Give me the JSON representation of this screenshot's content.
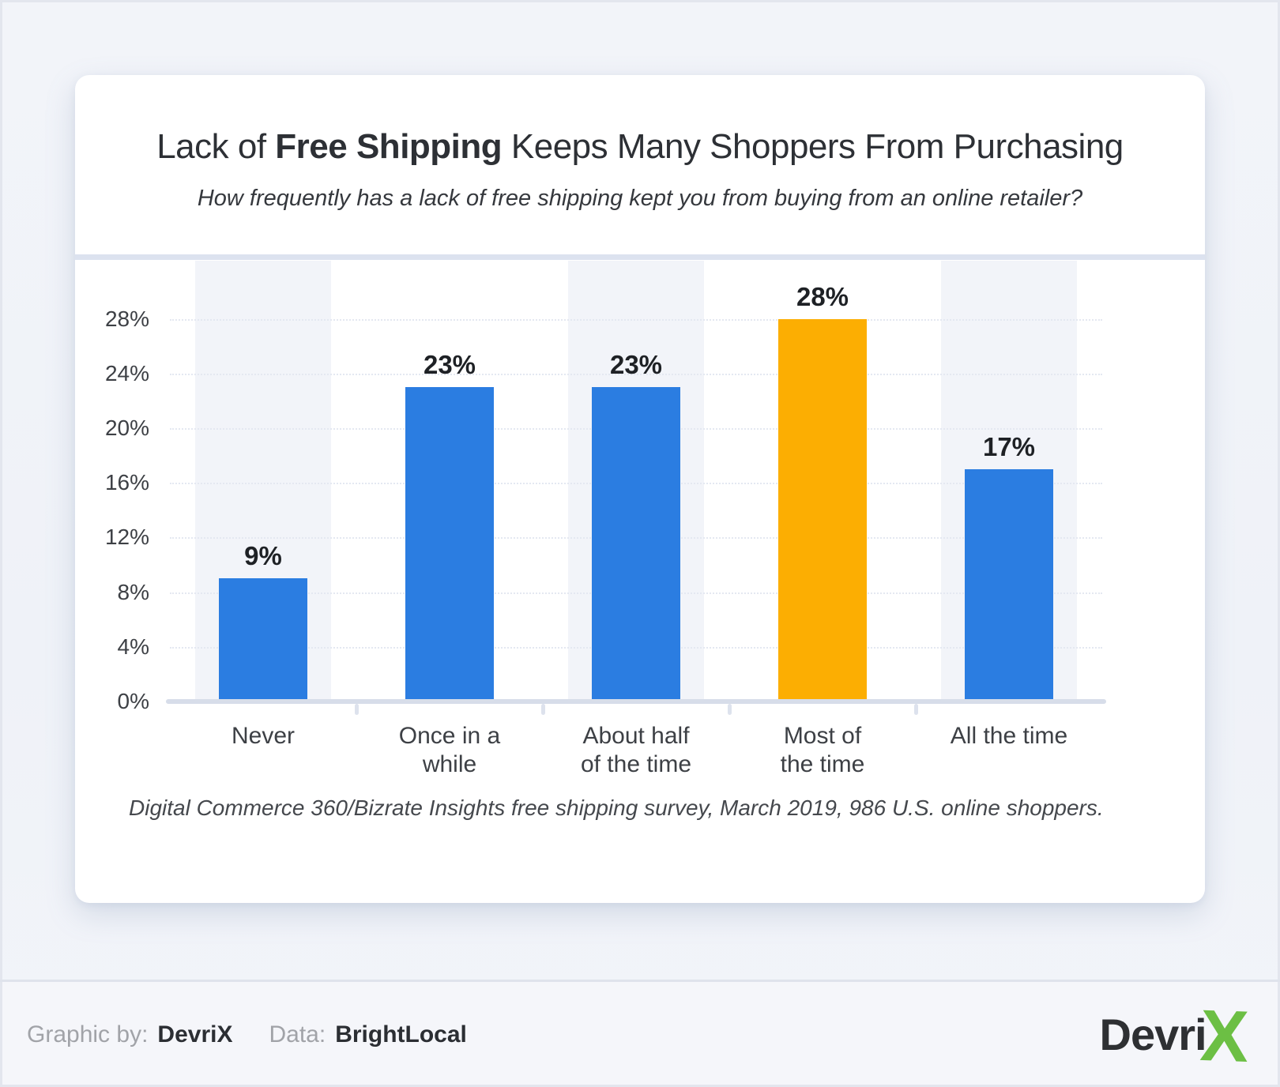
{
  "header": {
    "title_prefix": "Lack of ",
    "title_emphasis": "Free Shipping",
    "title_suffix": " Keeps Many Shoppers From Purchasing",
    "subtitle": "How frequently has a lack of free shipping kept you from buying from an online retailer?"
  },
  "chart_data": {
    "type": "bar",
    "title": "Lack of Free Shipping Keeps Many Shoppers From Purchasing",
    "subtitle": "How frequently has a lack of free shipping kept you from buying from an online retailer?",
    "categories": [
      "Never",
      "Once in a while",
      "About half of the time",
      "Most of the time",
      "All the time"
    ],
    "category_lines": [
      [
        "Never"
      ],
      [
        "Once in a",
        "while"
      ],
      [
        "About half",
        "of the time"
      ],
      [
        "Most of",
        "the time"
      ],
      [
        "All the time"
      ]
    ],
    "values": [
      9,
      23,
      23,
      28,
      17
    ],
    "value_labels": [
      "9%",
      "23%",
      "23%",
      "28%",
      "17%"
    ],
    "unit": "%",
    "xlabel": "",
    "ylabel": "",
    "ylim": [
      0,
      32
    ],
    "yticks": [
      0,
      4,
      8,
      12,
      16,
      20,
      24,
      28
    ],
    "ytick_labels": [
      "0%",
      "4%",
      "8%",
      "12%",
      "16%",
      "20%",
      "24%",
      "28%"
    ],
    "grid": "horizontal-dotted",
    "legend": "none",
    "highlight_index": 3,
    "bar_color": "#2b7de1",
    "highlight_color": "#fcae02",
    "band_color": "#f2f4f9"
  },
  "footnote": "Digital Commerce 360/Bizrate Insights free shipping survey, March 2019, 986 U.S. online shoppers.",
  "footer": {
    "credit1_label": "Graphic by:",
    "credit1_value": "DevriX",
    "credit2_label": "Data:",
    "credit2_value": "BrightLocal",
    "logo_word": "Devri",
    "logo_mark": "X"
  },
  "colors": {
    "bar_blue": "#2b7de1",
    "bar_orange": "#fcae02",
    "logo_green": "#6cbf44",
    "card_bg": "#ffffff",
    "page_bg": "#f1f3f8",
    "divider": "#dce2ef",
    "baseline": "#d7dde9"
  }
}
